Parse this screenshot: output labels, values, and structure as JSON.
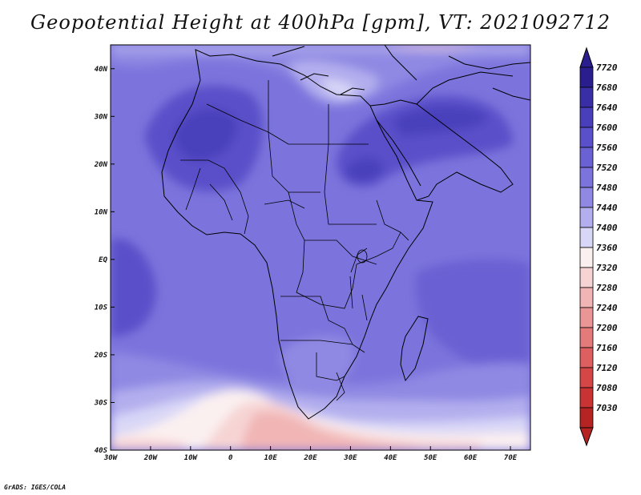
{
  "title": "Geopotential Height at 400hPa [gpm], VT: 2021092712",
  "credit": "GrADS: IGES/COLA",
  "map": {
    "lon_range": [
      -30,
      75
    ],
    "lat_range": [
      -40,
      45
    ],
    "lon_ticks": [
      "30W",
      "20W",
      "10W",
      "0",
      "10E",
      "20E",
      "30E",
      "40E",
      "50E",
      "60E",
      "70E"
    ],
    "lat_ticks": [
      "40S",
      "30S",
      "20S",
      "10S",
      "EQ",
      "10N",
      "20N",
      "30N",
      "40N"
    ]
  },
  "colorbar": {
    "levels": [
      {
        "label": "7720",
        "color": "#2a1e8f"
      },
      {
        "label": "7680",
        "color": "#3a2ea6"
      },
      {
        "label": "7640",
        "color": "#4a3fbb"
      },
      {
        "label": "7600",
        "color": "#5a50c9"
      },
      {
        "label": "7560",
        "color": "#6a61d3"
      },
      {
        "label": "7520",
        "color": "#7c74dc"
      },
      {
        "label": "7480",
        "color": "#9089e3"
      },
      {
        "label": "7440",
        "color": "#b3afee"
      },
      {
        "label": "7400",
        "color": "#d9d7f7"
      },
      {
        "label": "7360",
        "color": "#fbf0f0"
      },
      {
        "label": "7320",
        "color": "#f7d4d4"
      },
      {
        "label": "7280",
        "color": "#f1b5b5"
      },
      {
        "label": "7240",
        "color": "#ea9696"
      },
      {
        "label": "7200",
        "color": "#e47a7a"
      },
      {
        "label": "7160",
        "color": "#de5f5f"
      },
      {
        "label": "7120",
        "color": "#d54747"
      },
      {
        "label": "7080",
        "color": "#c93333"
      },
      {
        "label": "7030",
        "color": "#b52323"
      }
    ]
  }
}
